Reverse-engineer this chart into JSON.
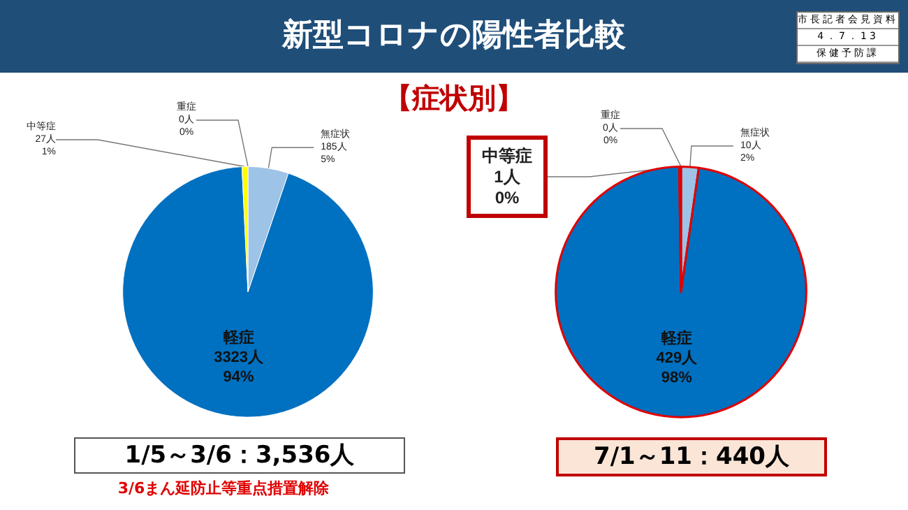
{
  "chart_data": [
    {
      "type": "pie",
      "title": "新型コロナの陽性者比較",
      "subtitle": "【症状別】",
      "categories": [
        "重症",
        "無症状",
        "軽症",
        "中等症"
      ],
      "values": [
        0,
        185,
        3323,
        27
      ],
      "colors": [
        "#c00000",
        "#9dc3e6",
        "#0070c0",
        "#ffff00"
      ],
      "value_labels": [
        "0人\n0%",
        "185人\n5%",
        "3323人\n94%",
        "27人\n1%"
      ],
      "annotations": [
        "市長記者会見資料",
        "4．7．13",
        "保健予防課",
        "1/5～3/6：3,536人",
        "3/6まん延防止等重点措置解除"
      ],
      "legend": false
    },
    {
      "type": "pie",
      "categories": [
        "重症",
        "無症状",
        "軽症",
        "中等症"
      ],
      "values": [
        0,
        10,
        429,
        1
      ],
      "colors": [
        "#c00000",
        "#9dc3e6",
        "#0070c0",
        "#ff0000"
      ],
      "value_labels": [
        "0人\n0%",
        "10人\n2%",
        "429人\n98%",
        "1人\n0%"
      ],
      "annotations": [
        "7/1～11：440人"
      ],
      "legend": false
    }
  ]
}
